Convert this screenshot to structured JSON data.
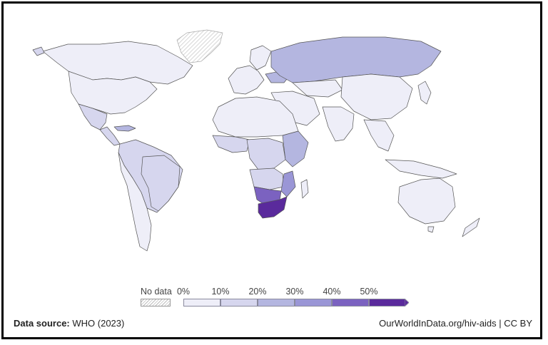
{
  "map": {
    "topic": "hiv-aids",
    "colors": {
      "no_data_hatch": "#bdbdbd",
      "bin_0_10": "#eeeef8",
      "bin_10_20": "#d6d6ee",
      "bin_20_30": "#b4b6e0",
      "bin_30_40": "#9a96d6",
      "bin_40_50": "#7b62c0",
      "bin_50_plus": "#5a2a9c",
      "border": "#444444"
    }
  },
  "legend": {
    "no_data_label": "No data",
    "ticks": [
      "0%",
      "10%",
      "20%",
      "30%",
      "40%",
      "50%"
    ],
    "bins": [
      {
        "from": 0,
        "to": 10,
        "color": "#eeeef8"
      },
      {
        "from": 10,
        "to": 20,
        "color": "#d6d6ee"
      },
      {
        "from": 20,
        "to": 30,
        "color": "#b4b6e0"
      },
      {
        "from": 30,
        "to": 40,
        "color": "#9a96d6"
      },
      {
        "from": 40,
        "to": 50,
        "color": "#7b62c0"
      },
      {
        "from": 50,
        "to": null,
        "color": "#5a2a9c"
      }
    ]
  },
  "footer": {
    "source_label": "Data source:",
    "source_value": "WHO (2023)",
    "credit": "OurWorldInData.org/hiv-aids | CC BY"
  }
}
